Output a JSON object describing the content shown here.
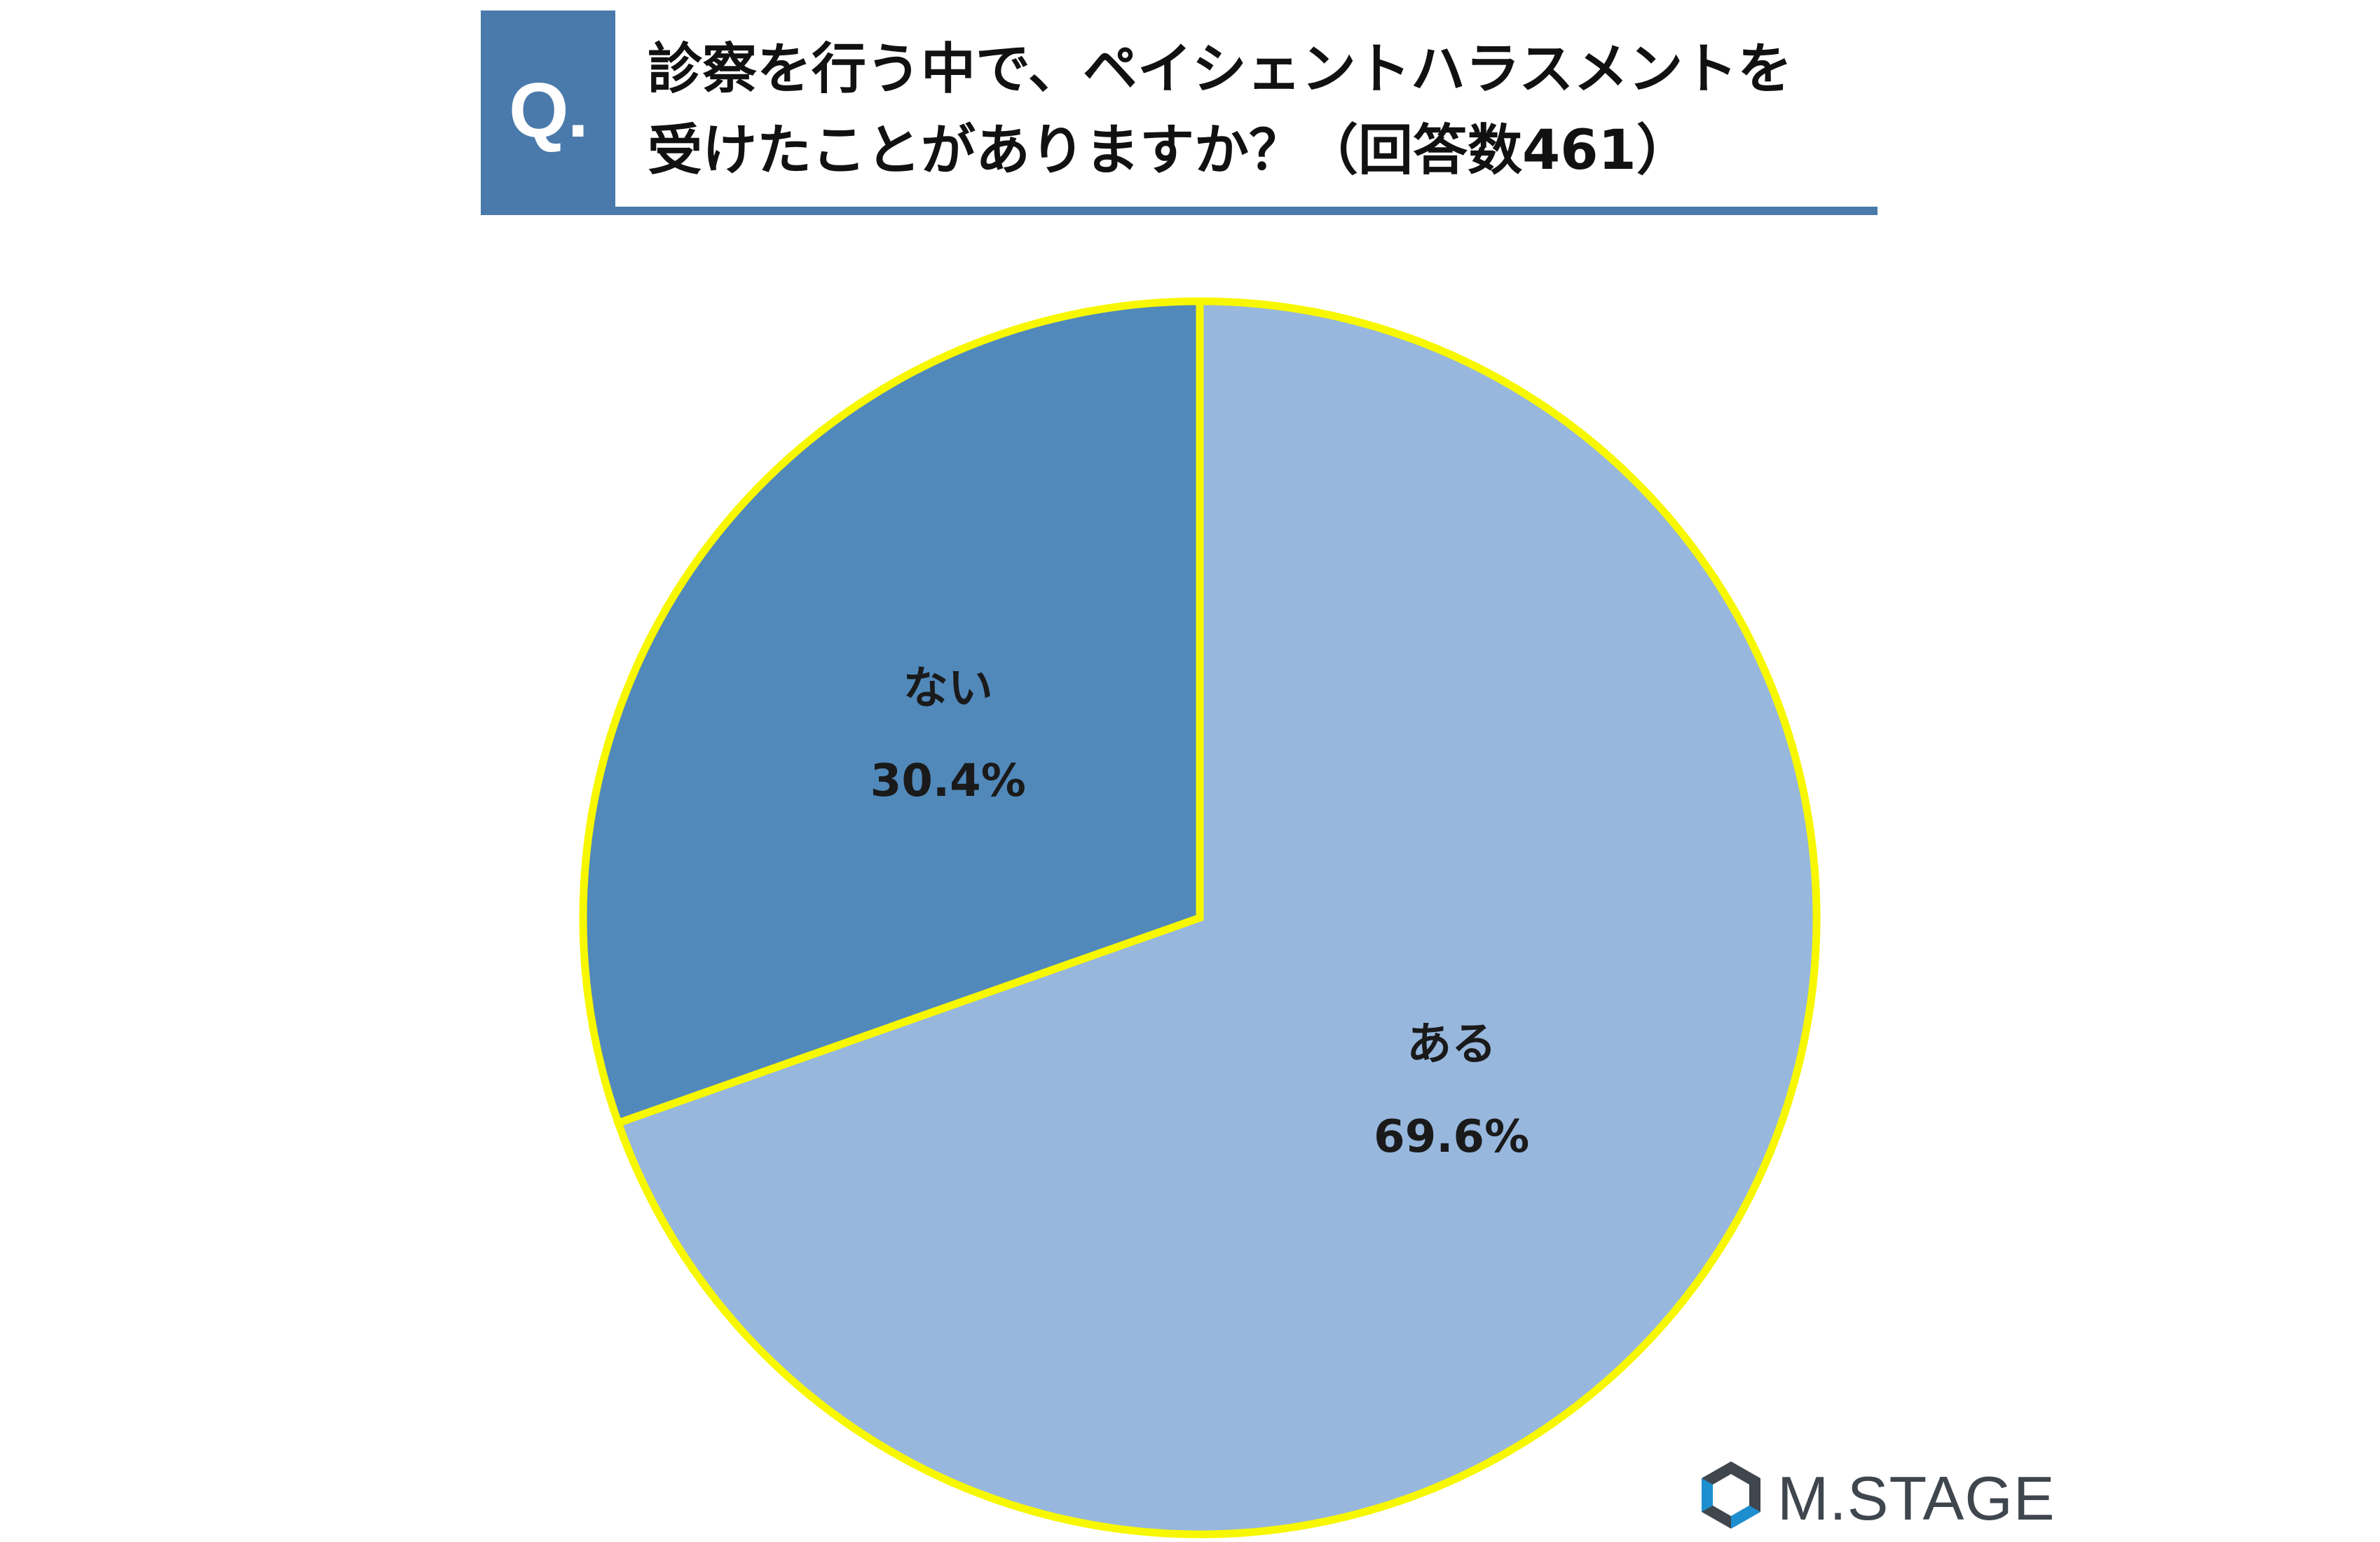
{
  "header": {
    "q_label": "Q.",
    "title_line1": "診察を行う中で、ペイシェントハラスメントを",
    "title_line2": "受けたことがありますか？（回答数461）"
  },
  "chart_data": {
    "type": "pie",
    "title": "診察を行う中で、ペイシェントハラスメントを受けたことがありますか？（回答数461）",
    "start_angle_deg": 0,
    "direction": "clockwise",
    "slices": [
      {
        "label": "ある",
        "value": 69.6,
        "value_label": "69.6%",
        "color": "#97b7dd"
      },
      {
        "label": "ない",
        "value": 30.4,
        "value_label": "30.4%",
        "color": "#5189bb"
      }
    ],
    "border_color": "#f7f700"
  },
  "logo": {
    "text": "M.STAGE"
  },
  "colors": {
    "accent": "#4a7aab",
    "logo_dark": "#3f464d",
    "logo_blue": "#1d8fd0"
  }
}
